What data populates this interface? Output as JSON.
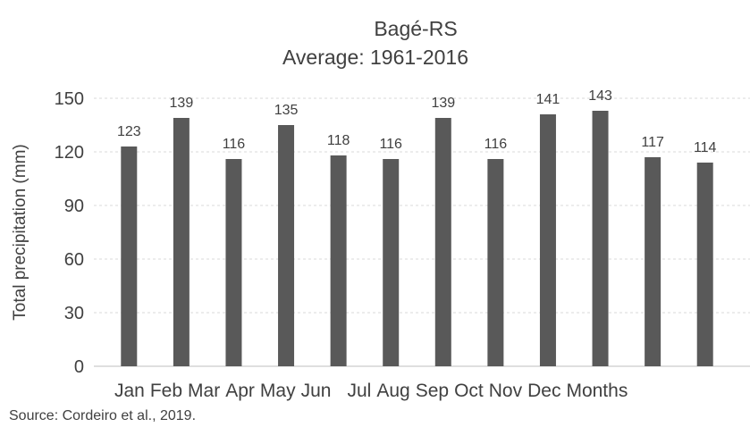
{
  "chart_data": {
    "type": "bar",
    "title": "Bagé-RS",
    "subtitle": "Average: 1961-2016",
    "y_label": "Total precipitation (mm)",
    "x_label": "Months",
    "source": "Source: Cordeiro et al., 2019.",
    "categories": [
      "Jan",
      "Feb",
      "Mar",
      "Apr",
      "May",
      "Jun",
      "Jul",
      "Aug",
      "Sep",
      "Oct",
      "Nov",
      "Dec"
    ],
    "values": [
      123,
      139,
      116,
      135,
      118,
      116,
      139,
      116,
      141,
      143,
      117,
      114
    ],
    "color": "#595959",
    "ylim": [
      0,
      150
    ],
    "yticks": [
      0,
      30,
      60,
      90,
      120,
      150
    ],
    "grid": true
  }
}
